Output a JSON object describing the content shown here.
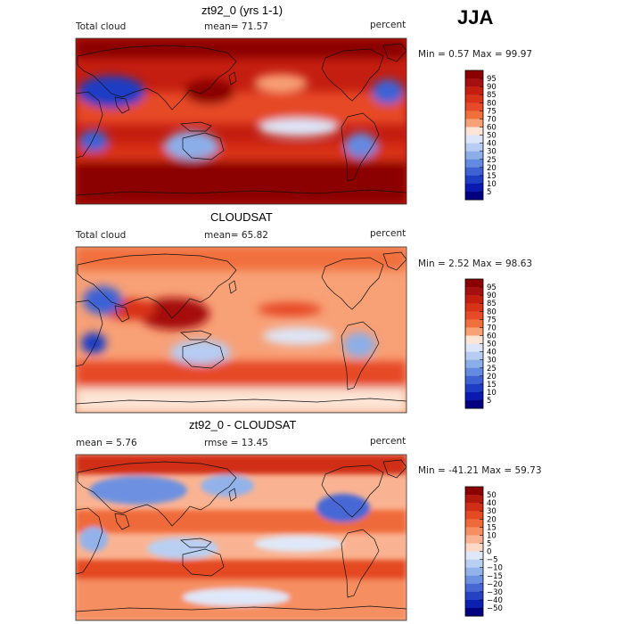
{
  "season": "JJA",
  "panels": [
    {
      "title": "zt92_0 (yrs 1-1)",
      "left_label": "Total cloud",
      "center_label": "mean=   71.57",
      "right_label": "percent",
      "minmax": "Min =    0.57 Max =   99.97",
      "colorbar_labels": [
        "95",
        "90",
        "85",
        "80",
        "75",
        "70",
        "60",
        "50",
        "40",
        "30",
        "25",
        "20",
        "15",
        "10",
        "5"
      ],
      "colorbar_colors": [
        "#8b0000",
        "#a50f0f",
        "#c41e10",
        "#d83218",
        "#e64a28",
        "#f0703c",
        "#f8a076",
        "#fde4d4",
        "#dde6f8",
        "#b6ccf2",
        "#8caee8",
        "#6489e0",
        "#3e62d4",
        "#1f3cc4",
        "#0a1ab0",
        "#000080"
      ]
    },
    {
      "title": "CLOUDSAT",
      "left_label": "Total cloud",
      "center_label": "mean=   65.82",
      "right_label": "percent",
      "minmax": "Min =    2.52 Max =   98.63",
      "colorbar_labels": [
        "95",
        "90",
        "85",
        "80",
        "75",
        "70",
        "60",
        "50",
        "40",
        "30",
        "25",
        "20",
        "15",
        "10",
        "5"
      ],
      "colorbar_colors": [
        "#8b0000",
        "#a50f0f",
        "#c41e10",
        "#d83218",
        "#e64a28",
        "#f0703c",
        "#f8a076",
        "#fde4d4",
        "#dde6f8",
        "#b6ccf2",
        "#8caee8",
        "#6489e0",
        "#3e62d4",
        "#1f3cc4",
        "#0a1ab0",
        "#000080"
      ]
    },
    {
      "title": "zt92_0 - CLOUDSAT",
      "left_label": "mean =    5.76",
      "center_label": "rmse =   13.45",
      "right_label": "percent",
      "minmax": "Min =  -41.21 Max =   59.73",
      "colorbar_labels": [
        "50",
        "40",
        "30",
        "20",
        "15",
        "10",
        "5",
        "0",
        "−5",
        "−10",
        "−15",
        "−20",
        "−30",
        "−40",
        "−50"
      ],
      "colorbar_colors": [
        "#8b0000",
        "#b2180e",
        "#d02e16",
        "#e44a24",
        "#ef6a3a",
        "#f58e60",
        "#fab392",
        "#fdd9c6",
        "#dfe8f8",
        "#b9cff2",
        "#93b2ea",
        "#6d91e0",
        "#4768d4",
        "#2542c2",
        "#0c20b0",
        "#000080"
      ]
    }
  ]
}
